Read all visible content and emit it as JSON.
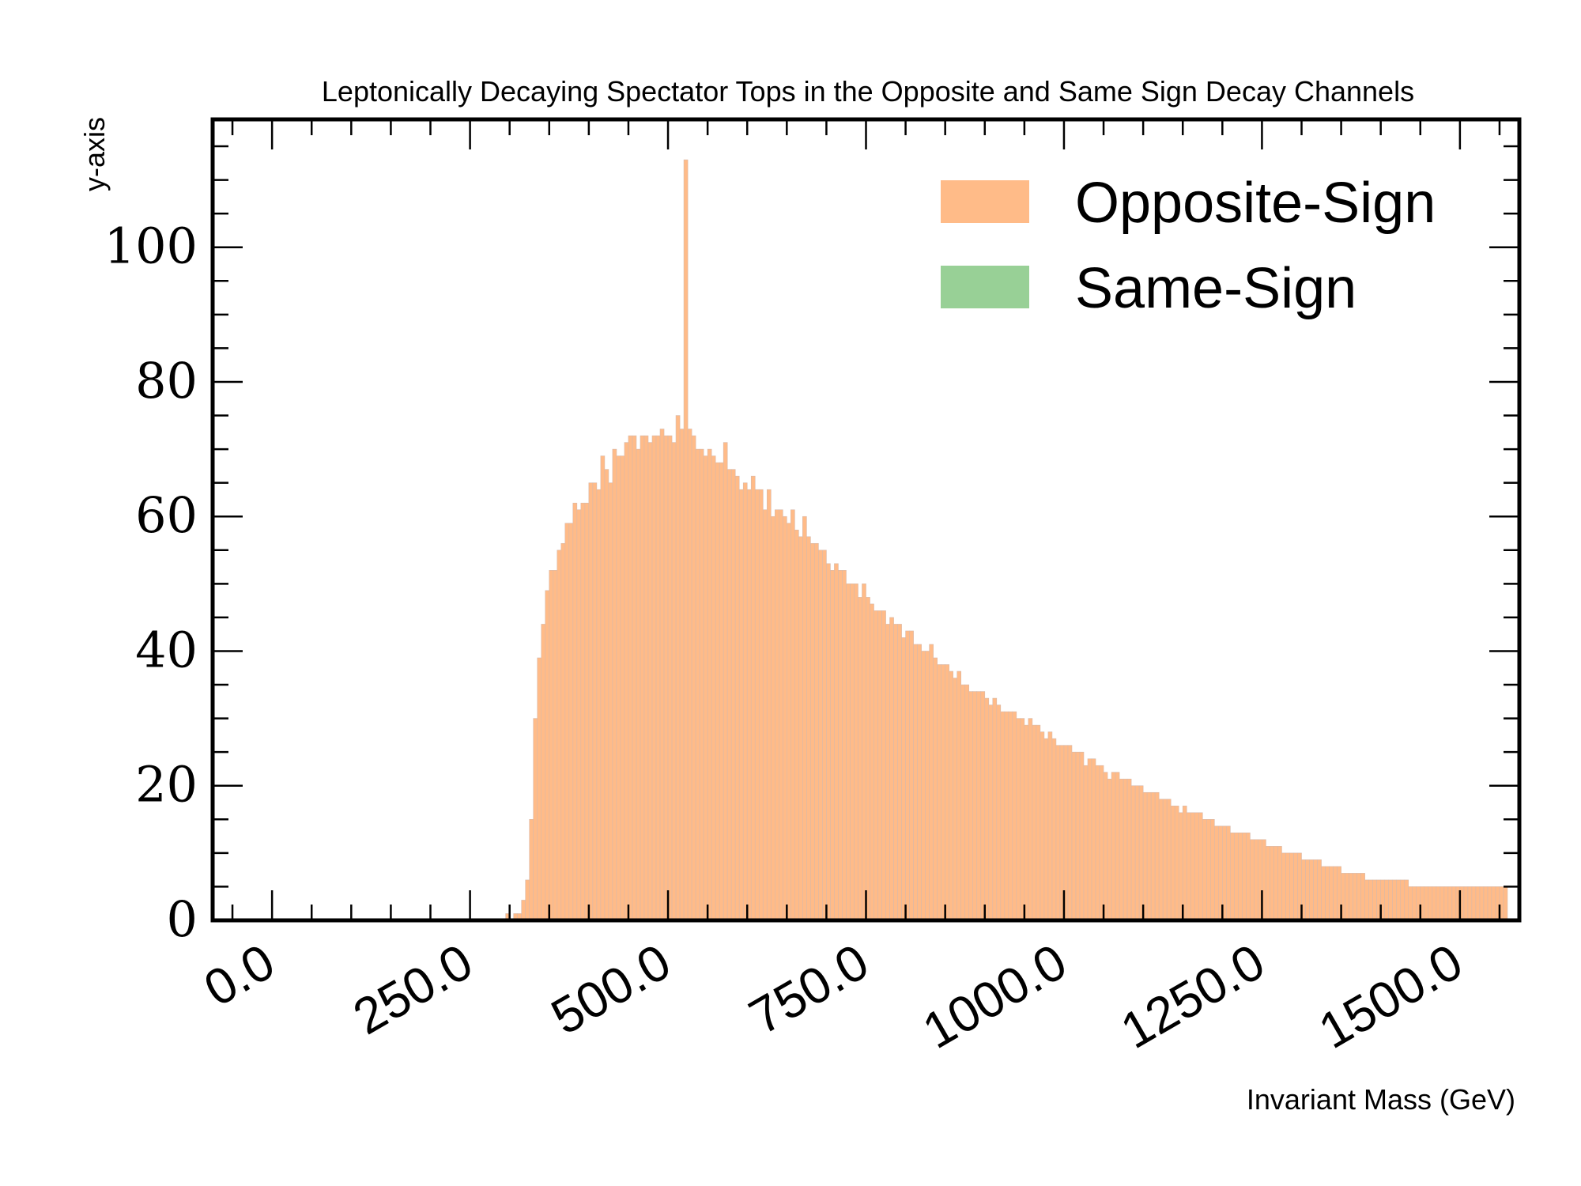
{
  "chart_data": {
    "type": "histogram",
    "title": "Leptonically Decaying Spectator Tops in the Opposite and Same Sign Decay Channels",
    "xlabel": "Invariant Mass (GeV)",
    "ylabel": "y-axis",
    "xlim": [
      -75,
      1575
    ],
    "ylim": [
      0,
      119
    ],
    "xticks": [
      0,
      250,
      500,
      750,
      1000,
      1250,
      1500
    ],
    "xtick_labels": [
      "0.0",
      "250.0",
      "500.0",
      "750.0",
      "1000.0",
      "1250.0",
      "1500.0"
    ],
    "yticks": [
      0,
      20,
      40,
      60,
      80,
      100
    ],
    "ytick_labels": [
      "0",
      "20",
      "40",
      "60",
      "80",
      "100"
    ],
    "legend_position": "top-right",
    "grid": false,
    "bin_width": 5,
    "series": [
      {
        "name": "Opposite-Sign",
        "color": "#ffbb88",
        "edge_color": "#d9b9a8",
        "x_start": 290,
        "values": [
          0,
          1,
          0,
          1,
          1,
          3,
          6,
          15,
          30,
          39,
          44,
          49,
          52,
          52,
          55,
          56,
          59,
          59,
          62,
          61,
          62,
          62,
          65,
          65,
          64,
          69,
          67,
          65,
          70,
          69,
          69,
          71,
          72,
          72,
          70,
          72,
          72,
          71,
          72,
          72,
          73,
          72,
          72,
          71,
          75,
          73,
          113,
          73,
          72,
          70,
          70,
          69,
          70,
          69,
          68,
          68,
          71,
          67,
          67,
          66,
          64,
          65,
          64,
          66,
          64,
          64,
          61,
          64,
          60,
          61,
          61,
          60,
          59,
          61,
          58,
          57,
          60,
          57,
          56,
          56,
          55,
          55,
          53,
          52,
          53,
          52,
          52,
          50,
          50,
          50,
          48,
          50,
          48,
          47,
          46,
          46,
          46,
          44,
          45,
          44,
          44,
          42,
          43,
          43,
          41,
          41,
          40,
          40,
          41,
          39,
          38,
          38,
          38,
          37,
          36,
          37,
          35,
          35,
          34,
          34,
          34,
          34,
          33,
          32,
          33,
          32,
          31,
          31,
          31,
          31,
          30,
          30,
          29,
          30,
          29,
          29,
          28,
          27,
          28,
          27,
          26,
          26,
          26,
          26,
          25,
          25,
          25,
          23,
          24,
          24,
          23,
          23,
          22,
          21,
          22,
          22,
          21,
          21,
          21,
          20,
          20,
          20,
          19,
          19,
          19,
          19,
          18,
          18,
          18,
          17,
          17,
          16,
          17,
          16,
          16,
          16,
          16,
          15,
          15,
          15,
          14,
          14,
          14,
          14,
          13,
          13,
          13,
          13,
          13,
          12,
          12,
          12,
          12,
          11,
          11,
          11,
          11,
          10,
          10,
          10,
          10,
          10,
          9,
          9,
          9,
          9,
          9,
          8,
          8,
          8,
          8,
          8,
          7,
          7,
          7,
          7,
          7,
          7,
          6,
          6,
          6,
          6,
          6,
          6,
          6,
          6,
          6,
          6,
          6,
          5,
          5,
          5,
          5,
          5,
          5,
          5,
          5,
          5,
          5,
          5,
          5,
          5,
          5,
          5,
          5,
          5,
          5,
          5,
          5,
          5,
          5,
          5,
          5,
          5
        ]
      },
      {
        "name": "Same-Sign",
        "color": "#98d096",
        "values": []
      }
    ]
  }
}
